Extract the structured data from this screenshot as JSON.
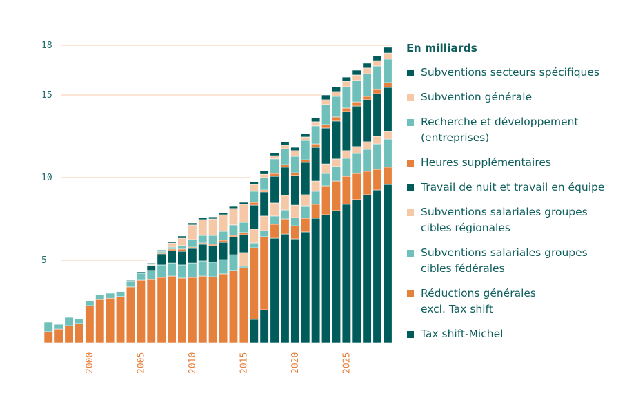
{
  "chart_data": {
    "type": "bar",
    "stacked": true,
    "title": "",
    "unit_label": "En milliards",
    "xlabel": "",
    "ylabel": "",
    "ylim": [
      0,
      18
    ],
    "yticks": [
      5,
      10,
      15,
      18
    ],
    "xtick_labels": [
      "2000",
      "2005",
      "2010",
      "2015",
      "2020",
      "2025"
    ],
    "grid": "horizontal",
    "legend_position": "right",
    "categories": [
      1996,
      1997,
      1998,
      1999,
      2000,
      2001,
      2002,
      2003,
      2004,
      2005,
      2006,
      2007,
      2008,
      2009,
      2010,
      2011,
      2012,
      2013,
      2014,
      2015,
      2016,
      2017,
      2018,
      2019,
      2020,
      2021,
      2022,
      2023,
      2024,
      2025,
      2026,
      2027,
      2028,
      2029
    ],
    "series": [
      {
        "name": "Tax shift-Michel",
        "color": "#005c5a",
        "values": [
          0,
          0,
          0,
          0,
          0,
          0,
          0,
          0,
          0,
          0,
          0,
          0,
          0,
          0,
          0,
          0,
          0,
          0,
          0,
          0,
          1.42,
          2.0,
          6.33,
          6.58,
          6.29,
          6.71,
          7.54,
          7.75,
          8.0,
          8.38,
          8.67,
          8.96,
          9.25,
          9.58
        ]
      },
      {
        "name": "Réductions générales excl. Tax shift",
        "color": "#e5803d",
        "values": [
          0.67,
          0.83,
          1.04,
          1.17,
          2.25,
          2.62,
          2.7,
          2.8,
          3.38,
          3.79,
          3.83,
          3.96,
          4.04,
          3.92,
          3.96,
          4.04,
          4.0,
          4.17,
          4.38,
          4.54,
          4.33,
          4.42,
          0.84,
          0.92,
          0.79,
          0.83,
          0.84,
          1.75,
          1.79,
          1.7,
          1.58,
          1.42,
          1.25,
          1.05
        ]
      },
      {
        "name": "Subventions salariales groupes cibles fédérales",
        "color": "#6fc0ba",
        "values": [
          0.58,
          0.29,
          0.5,
          0.29,
          0.29,
          0.3,
          0.3,
          0.3,
          0.37,
          0.42,
          0.55,
          0.75,
          0.79,
          0.79,
          0.87,
          0.92,
          0.88,
          0.87,
          0.95,
          0.09,
          0.29,
          0.37,
          0.5,
          0.54,
          0.5,
          0.75,
          0.79,
          0.75,
          0.88,
          1.09,
          1.21,
          1.33,
          1.54,
          1.7
        ]
      },
      {
        "name": "Subventions salariales groupes cibles régionales",
        "color": "#f5c8a8",
        "values": [
          0,
          0,
          0,
          0,
          0,
          0,
          0,
          0,
          0,
          0,
          0,
          0,
          0,
          0,
          0,
          0,
          0,
          0,
          0,
          0.83,
          0.84,
          0.88,
          0.79,
          0.88,
          0.75,
          0.67,
          0.62,
          0.58,
          0.46,
          0.46,
          0.42,
          0.46,
          0.46,
          0.46
        ]
      },
      {
        "name": "Travail de nuit et travail en équipe",
        "color": "#005c5a",
        "values": [
          0,
          0,
          0,
          0,
          0,
          0,
          0,
          0,
          0.04,
          0.08,
          0.29,
          0.67,
          0.75,
          0.83,
          0.88,
          1.0,
          1.0,
          1.04,
          1.09,
          1.08,
          1.45,
          1.46,
          1.62,
          1.71,
          1.8,
          1.96,
          2.04,
          2.17,
          2.29,
          2.37,
          2.45,
          2.54,
          2.58,
          2.67
        ]
      },
      {
        "name": "Heures supplémentaires",
        "color": "#e5803d",
        "values": [
          0,
          0,
          0,
          0,
          0,
          0,
          0,
          0,
          0,
          0,
          0.04,
          0.08,
          0.09,
          0.13,
          0.08,
          0.08,
          0.08,
          0.13,
          0.08,
          0.13,
          0.17,
          0.12,
          0.17,
          0.16,
          0.16,
          0.16,
          0.21,
          0.21,
          0.25,
          0.21,
          0.25,
          0.21,
          0.25,
          0.29
        ]
      },
      {
        "name": "Recherche et développement (entreprises)",
        "color": "#6fc0ba",
        "values": [
          0,
          0,
          0,
          0,
          0,
          0,
          0,
          0,
          0,
          0,
          0.04,
          0.08,
          0.12,
          0.21,
          0.46,
          0.46,
          0.54,
          0.54,
          0.63,
          0.62,
          0.67,
          0.75,
          0.88,
          0.96,
          1.0,
          1.17,
          1.09,
          1.21,
          1.25,
          1.29,
          1.3,
          1.37,
          1.42,
          1.42
        ]
      },
      {
        "name": "Subvention générale",
        "color": "#f5c8a8",
        "values": [
          0,
          0,
          0,
          0,
          0,
          0,
          0,
          0,
          0,
          0,
          0.04,
          0.05,
          0.25,
          0.45,
          0.88,
          0.96,
          1.0,
          1.0,
          1.0,
          1.09,
          0.41,
          0.2,
          0.2,
          0.21,
          0.34,
          0.21,
          0.25,
          0.29,
          0.29,
          0.33,
          0.33,
          0.34,
          0.33,
          0.37
        ]
      },
      {
        "name": "Subventions secteurs spécifiques",
        "color": "#005c5a",
        "values": [
          0,
          0,
          0,
          0,
          0,
          0,
          0,
          0,
          0,
          0,
          0.04,
          0.04,
          0.09,
          0.13,
          0.12,
          0.12,
          0.12,
          0.13,
          0.16,
          0.12,
          0.17,
          0.22,
          0.17,
          0.21,
          0.2,
          0.21,
          0.25,
          0.29,
          0.29,
          0.25,
          0.29,
          0.29,
          0.3,
          0.34
        ]
      }
    ]
  },
  "legend": {
    "title": "En milliards",
    "items": [
      {
        "label": "Subventions secteurs spécifiques",
        "color": "#005c5a"
      },
      {
        "label": "Subvention générale",
        "color": "#f5c8a8"
      },
      {
        "label": "Recherche et développement\n(entreprises)",
        "color": "#6fc0ba"
      },
      {
        "label": "Heures supplémentaires",
        "color": "#e5803d"
      },
      {
        "label": "Travail de nuit et travail en équipe",
        "color": "#005c5a"
      },
      {
        "label": "Subventions salariales groupes\ncibles régionales",
        "color": "#f5c8a8"
      },
      {
        "label": "Subventions salariales groupes\ncibles fédérales",
        "color": "#6fc0ba"
      },
      {
        "label": "Réductions générales\nexcl. Tax shift",
        "color": "#e5803d"
      },
      {
        "label": "Tax shift-Michel",
        "color": "#005c5a"
      }
    ]
  },
  "colors": {
    "gridline": "#f8d5bd",
    "axis_text": "#1e6b6a",
    "x_tick_text": "#e5803d",
    "legend_text": "#0e5e5c"
  }
}
